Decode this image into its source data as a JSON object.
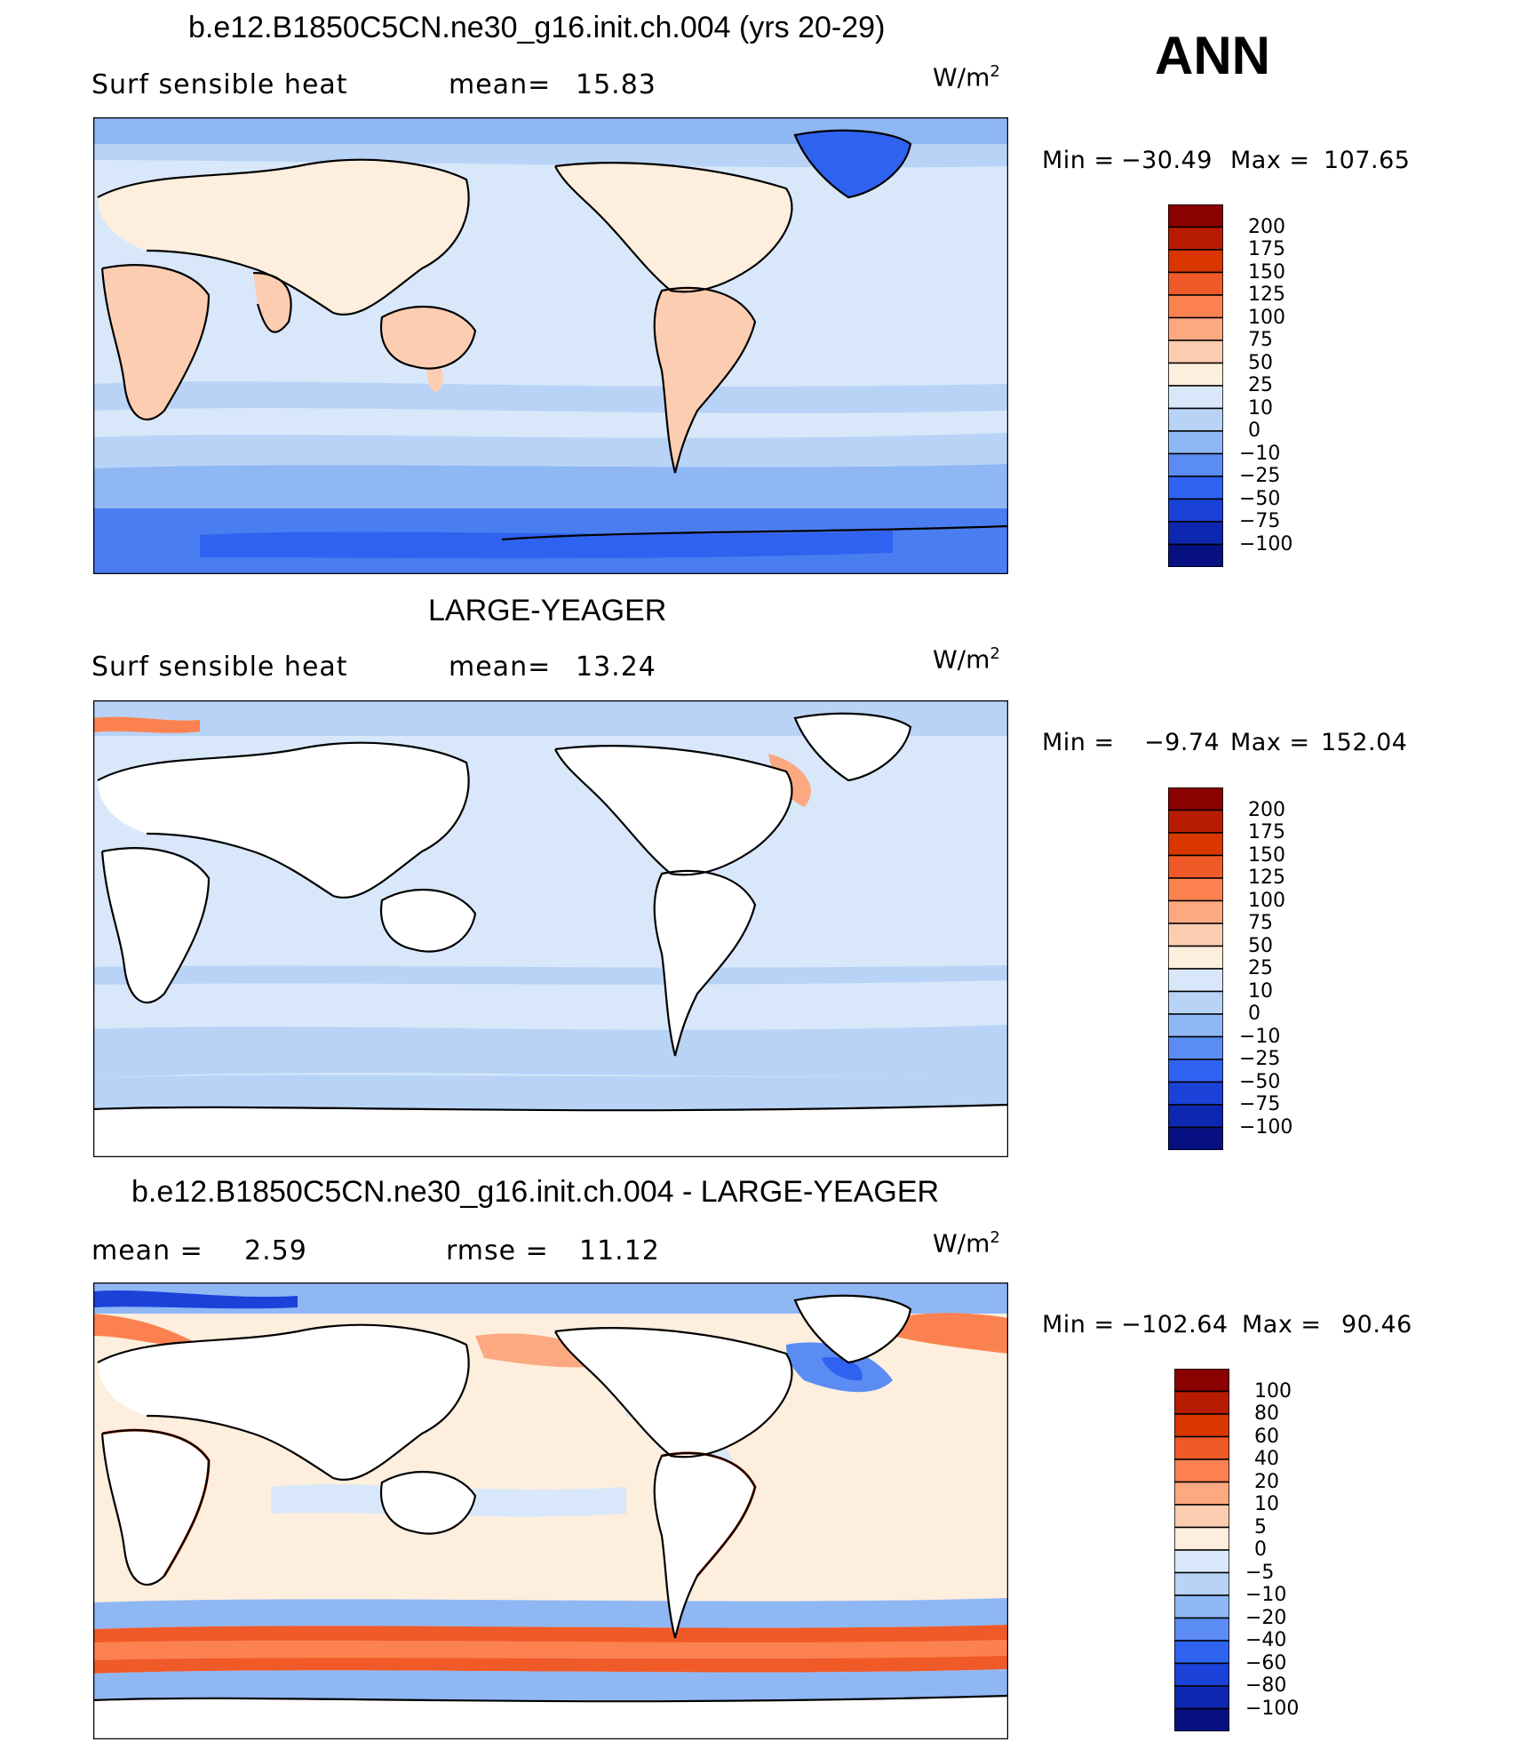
{
  "season": "ANN",
  "panels": [
    {
      "id": "model",
      "title": "b.e12.B1850C5CN.ne30_g16.init.ch.004 (yrs 20-29)",
      "left_label": "Surf  sensible  heat",
      "stat_label": "mean=",
      "stat_value": "15.83",
      "units_base": "W/m",
      "units_exp": "2",
      "min_label": "Min  =",
      "min_value": "−30.49",
      "max_label": "Max  =",
      "max_value": "107.65",
      "colorbar": {
        "colors": [
          "#8b0000",
          "#b81c00",
          "#d93600",
          "#f05a28",
          "#fb8250",
          "#fca880",
          "#fdcdb2",
          "#fdeedd",
          "#d8e8fa",
          "#b8d3f6",
          "#8fb7f4",
          "#5a8cf4",
          "#2f62f0",
          "#1a42d8",
          "#0d27b0",
          "#061080"
        ],
        "labels": [
          "200",
          "175",
          "150",
          "125",
          "100",
          "75",
          "50",
          "25",
          "10",
          "0",
          "−10",
          "−25",
          "−50",
          "−75",
          "−100"
        ]
      }
    },
    {
      "id": "obs",
      "title": "LARGE-YEAGER",
      "left_label": "Surf  sensible  heat",
      "stat_label": "mean=",
      "stat_value": "13.24",
      "units_base": "W/m",
      "units_exp": "2",
      "min_label": "Min  =",
      "min_value": "−9.74",
      "max_label": "Max  =",
      "max_value": "152.04",
      "colorbar": {
        "colors": [
          "#8b0000",
          "#b81c00",
          "#d93600",
          "#f05a28",
          "#fb8250",
          "#fca880",
          "#fdcdb2",
          "#fdeedd",
          "#d8e8fa",
          "#b8d3f6",
          "#8fb7f4",
          "#5a8cf4",
          "#2f62f0",
          "#1a42d8",
          "#0d27b0",
          "#061080"
        ],
        "labels": [
          "200",
          "175",
          "150",
          "125",
          "100",
          "75",
          "50",
          "25",
          "10",
          "0",
          "−10",
          "−25",
          "−50",
          "−75",
          "−100"
        ]
      }
    },
    {
      "id": "diff",
      "title": "b.e12.B1850C5CN.ne30_g16.init.ch.004 - LARGE-YEAGER",
      "left_label": "mean  =",
      "left_value": "2.59",
      "stat_label": "rmse  =",
      "stat_value": "11.12",
      "units_base": "W/m",
      "units_exp": "2",
      "min_label": "Min  =",
      "min_value": "−102.64",
      "max_label": "Max  =",
      "max_value": "90.46",
      "colorbar": {
        "colors": [
          "#8b0000",
          "#b81c00",
          "#d93600",
          "#f05a28",
          "#fb8250",
          "#fca880",
          "#fdcdb2",
          "#fdeedd",
          "#d8e8fa",
          "#b8d3f6",
          "#8fb7f4",
          "#5a8cf4",
          "#2f62f0",
          "#1a42d8",
          "#0d27b0",
          "#061080"
        ],
        "labels": [
          "100",
          "80",
          "60",
          "40",
          "20",
          "10",
          "5",
          "0",
          "−5",
          "−10",
          "−20",
          "−40",
          "−60",
          "−80",
          "−100"
        ]
      }
    }
  ]
}
